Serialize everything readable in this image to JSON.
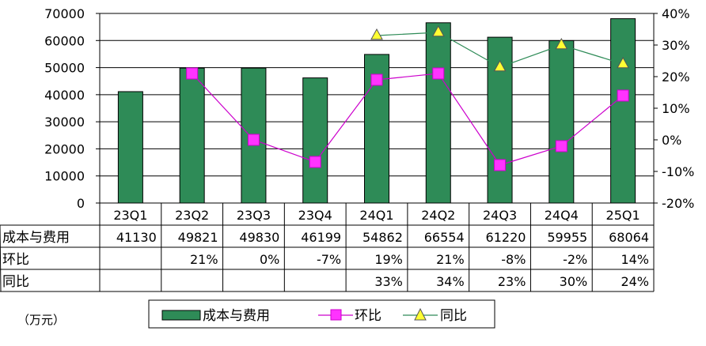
{
  "chart_data": {
    "type": "bar",
    "categories": [
      "23Q1",
      "23Q2",
      "23Q3",
      "23Q4",
      "24Q1",
      "24Q2",
      "24Q3",
      "24Q4",
      "25Q1"
    ],
    "y_left": {
      "min": 0,
      "max": 70000,
      "step": 10000,
      "ticks": [
        "0",
        "10000",
        "20000",
        "30000",
        "40000",
        "50000",
        "60000",
        "70000"
      ]
    },
    "y_right": {
      "min": -20,
      "max": 40,
      "step": 10,
      "ticks": [
        "-20%",
        "-10%",
        "0%",
        "10%",
        "20%",
        "30%",
        "40%"
      ]
    },
    "series": [
      {
        "name": "成本与费用",
        "kind": "bar",
        "axis": "left",
        "color": "#2e8b57",
        "values": [
          41130,
          49821,
          49830,
          46199,
          54862,
          66554,
          61220,
          59955,
          68064
        ]
      },
      {
        "name": "环比",
        "kind": "line",
        "axis": "right",
        "color": "#cc00cc",
        "marker": "square",
        "marker_color": "#ff33ff",
        "values": [
          null,
          21,
          0,
          -7,
          19,
          21,
          -8,
          -2,
          14
        ]
      },
      {
        "name": "同比",
        "kind": "line",
        "axis": "right",
        "color": "#2e8b57",
        "marker": "triangle",
        "marker_color": "#ffff33",
        "values": [
          null,
          null,
          null,
          null,
          33,
          34,
          23,
          30,
          24
        ]
      }
    ],
    "table": {
      "rows": [
        {
          "label": "成本与费用",
          "cells": [
            "41130",
            "49821",
            "49830",
            "46199",
            "54862",
            "66554",
            "61220",
            "59955",
            "68064"
          ]
        },
        {
          "label": "环比",
          "cells": [
            "",
            "21%",
            "0%",
            "-7%",
            "19%",
            "21%",
            "-8%",
            "-2%",
            "14%"
          ]
        },
        {
          "label": "同比",
          "cells": [
            "",
            "",
            "",
            "",
            "33%",
            "34%",
            "23%",
            "30%",
            "24%"
          ]
        }
      ]
    },
    "legend": {
      "placement": "bottom-center"
    },
    "unit_note": "（万元）",
    "grid": true
  }
}
